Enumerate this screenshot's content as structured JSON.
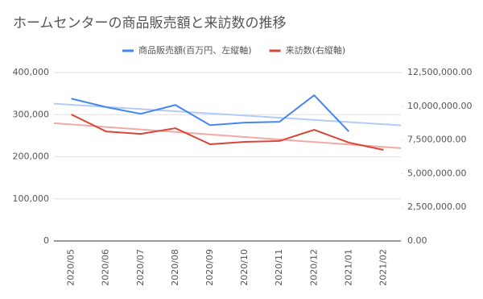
{
  "chart_data": {
    "type": "line",
    "title": "ホームセンターの商品販売額と来訪数の推移",
    "categories": [
      "2020/05",
      "2020/06",
      "2020/07",
      "2020/08",
      "2020/09",
      "2020/10",
      "2020/11",
      "2020/12",
      "2021/01",
      "2021/02"
    ],
    "series": [
      {
        "name": "商品販売額(百万円、左縦軸)",
        "color": "#4285f4",
        "trendline_color": "#b3cbf6",
        "axis": "y",
        "values": [
          338000,
          318000,
          302000,
          323000,
          275000,
          281000,
          283000,
          346000,
          260000,
          null
        ]
      },
      {
        "name": "来訪数(右縦軸)",
        "color": "#db4437",
        "trendline_color": "#f0aaa4",
        "axis": "y2",
        "values": [
          9390000,
          8130000,
          7950000,
          8370000,
          7180000,
          7360000,
          7420000,
          8250000,
          7300000,
          6760000
        ]
      }
    ],
    "trendline": true,
    "ylim": [
      0,
      400000
    ],
    "yticks": [
      0,
      {
        "value": 100000,
        "label": "100,000"
      },
      {
        "value": 200000,
        "label": "200,000"
      },
      {
        "value": 300000,
        "label": "300,000"
      },
      {
        "value": 400000,
        "label": "400,000"
      }
    ],
    "y2lim": [
      0,
      12500000
    ],
    "y2ticks": [
      {
        "value": 0,
        "label": "0.00"
      },
      {
        "value": 2500000,
        "label": "2,500,000.00"
      },
      {
        "value": 5000000,
        "label": "5,000,000.00"
      },
      {
        "value": 7500000,
        "label": "7,500,000.00"
      },
      {
        "value": 10000000,
        "label": "10,000,000.00"
      },
      {
        "value": 12500000,
        "label": "12,500,000.00"
      }
    ],
    "grid": true,
    "legend": "top"
  }
}
